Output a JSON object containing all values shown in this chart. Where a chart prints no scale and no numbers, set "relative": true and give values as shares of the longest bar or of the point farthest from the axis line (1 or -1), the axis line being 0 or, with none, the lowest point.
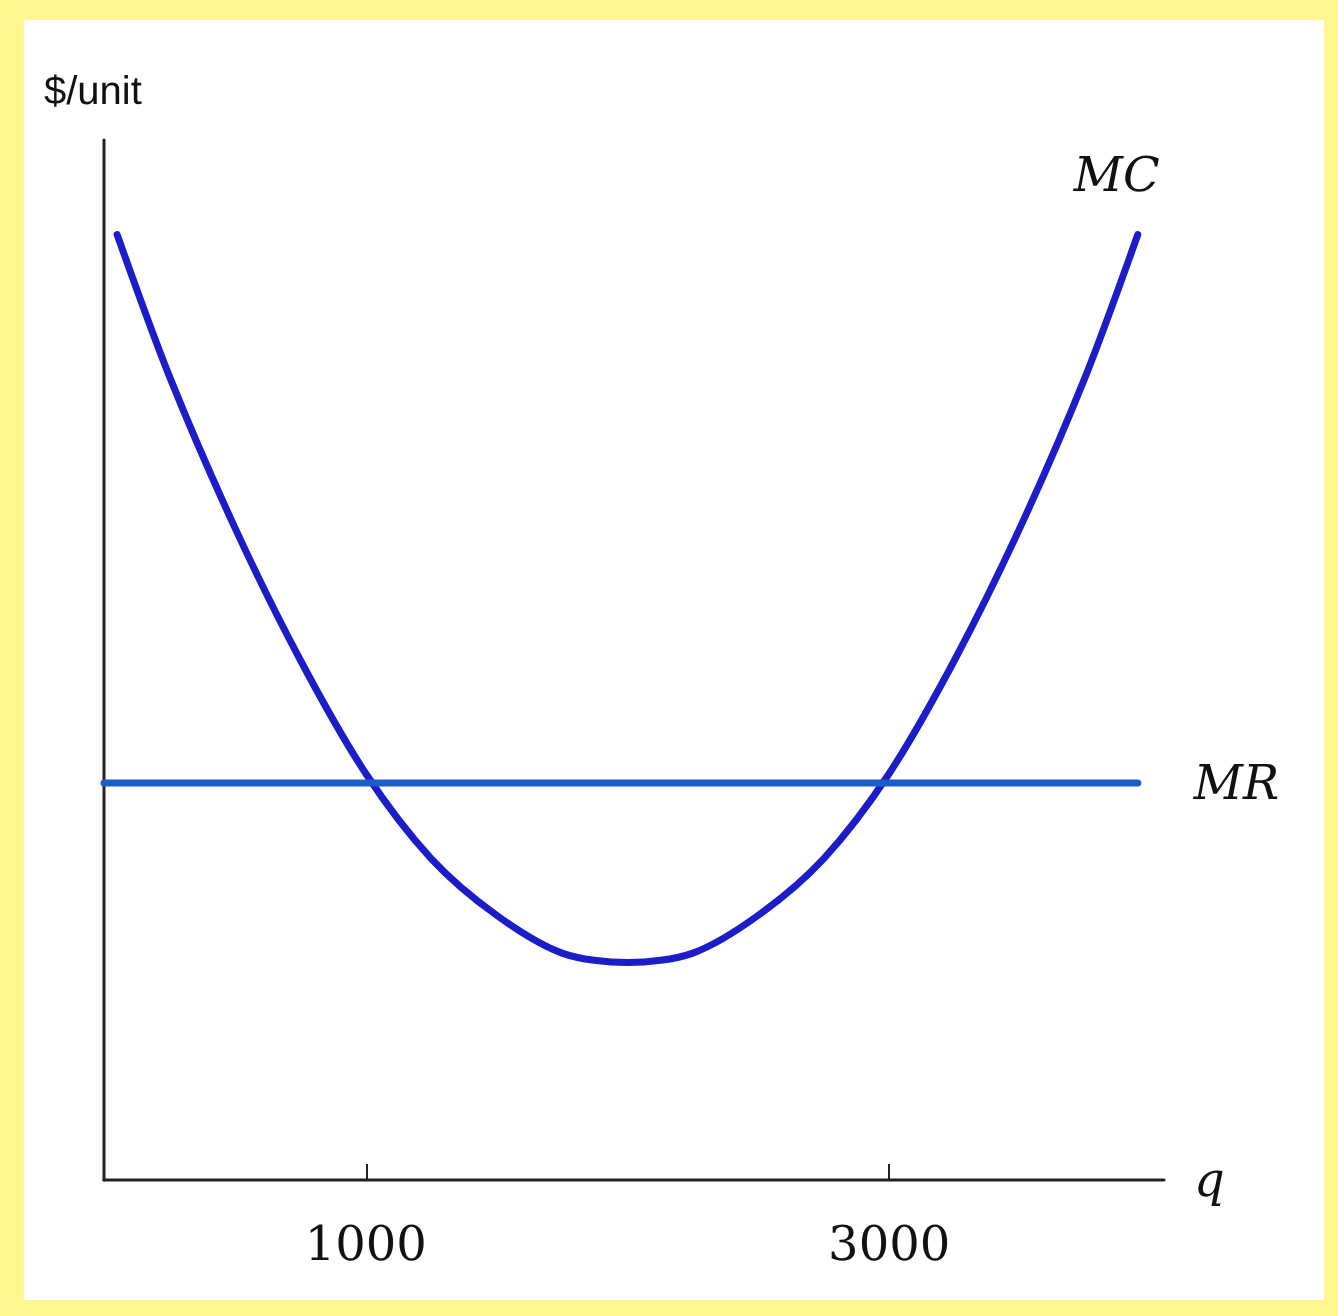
{
  "chart_data": {
    "type": "line",
    "relative": true,
    "xlabel": "q",
    "ylabel": "$/unit",
    "xlim": [
      0,
      4050
    ],
    "xticks": [
      1000,
      3000
    ],
    "grid": false,
    "legend": false,
    "marker": "none",
    "line_style": "solid",
    "series": [
      {
        "name": "MC",
        "color": "#1c1cc8",
        "x": [
          50,
          250,
          500,
          750,
          1000,
          1250,
          1500,
          1750,
          2000,
          2250,
          2500,
          2750,
          3000,
          3250,
          3500,
          3750,
          3950
        ],
        "values": [
          1.0,
          0.85,
          0.69,
          0.55,
          0.43,
          0.34,
          0.28,
          0.24,
          0.23,
          0.24,
          0.28,
          0.34,
          0.43,
          0.55,
          0.69,
          0.85,
          1.0
        ]
      },
      {
        "name": "MR",
        "color": "#1c5cc8",
        "x": [
          0,
          3950
        ],
        "values": [
          0.42,
          0.42
        ]
      }
    ]
  }
}
